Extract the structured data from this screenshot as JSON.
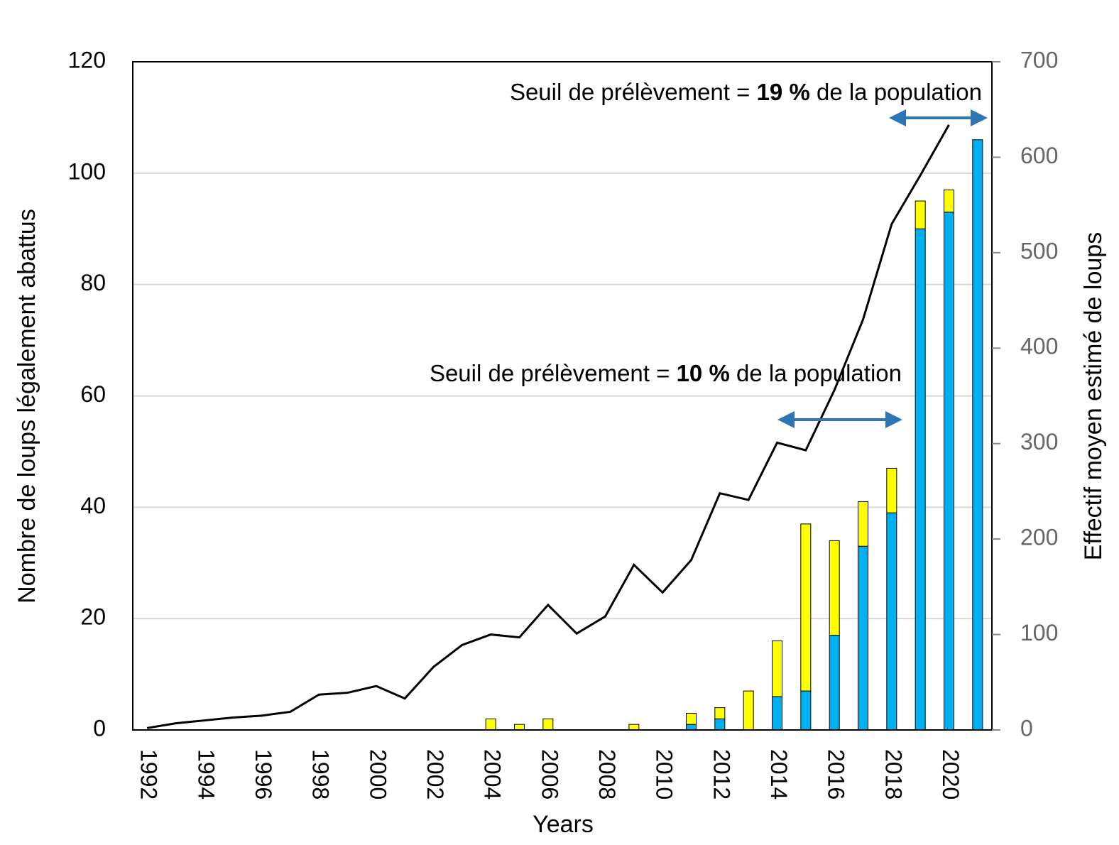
{
  "chart_data": {
    "type": "bar",
    "x_label": "Years",
    "y_label": "Nombre de loups légalement abattus",
    "y2_label": "Effectif moyen estimé de loups",
    "categories": [
      "1992",
      null,
      "1994",
      null,
      "1996",
      null,
      "1998",
      null,
      "2000",
      null,
      "2002",
      null,
      "2004",
      null,
      "2006",
      null,
      "2008",
      null,
      "2010",
      null,
      "2012",
      null,
      "2014",
      null,
      "2016",
      null,
      "2018",
      null,
      "2020",
      null
    ],
    "series": [
      {
        "color": "#00b0f0",
        "values": [
          0,
          0,
          0,
          0,
          0,
          0,
          0,
          0,
          0,
          0,
          0,
          0,
          0,
          0,
          0,
          0,
          0,
          0,
          0,
          1,
          2,
          0,
          6,
          7,
          17,
          33,
          39,
          90,
          93,
          106
        ]
      },
      {
        "color": "#ffff00",
        "values": [
          0,
          0,
          0,
          0,
          0,
          0,
          0,
          0,
          0,
          0,
          0,
          0,
          2,
          1,
          2,
          0,
          0,
          1,
          0,
          2,
          2,
          7,
          10,
          30,
          17,
          8,
          8,
          5,
          4,
          0
        ]
      },
      {
        "type": "line",
        "axis": "y2",
        "color": "#000000",
        "values": [
          2,
          7,
          10,
          13,
          15,
          19,
          37,
          39,
          46,
          33,
          66,
          89,
          100,
          97,
          131,
          101,
          119,
          173,
          144,
          178,
          248,
          241,
          301,
          293,
          356,
          430,
          530,
          581,
          634,
          null
        ]
      }
    ],
    "ylim": [
      0,
      120
    ],
    "yticks": [
      0,
      20,
      40,
      60,
      80,
      100,
      120
    ],
    "y2lim": [
      0,
      700
    ],
    "y2ticks": [
      0,
      100,
      200,
      300,
      400,
      500,
      600,
      700
    ],
    "grid": true,
    "annotations": [
      {
        "prefix": "Seuil de prélèvement = ",
        "bold": "19 %",
        "suffix": " de la population"
      },
      {
        "prefix": "Seuil de prélèvement = ",
        "bold": "10 %",
        "suffix": " de la population"
      }
    ]
  }
}
